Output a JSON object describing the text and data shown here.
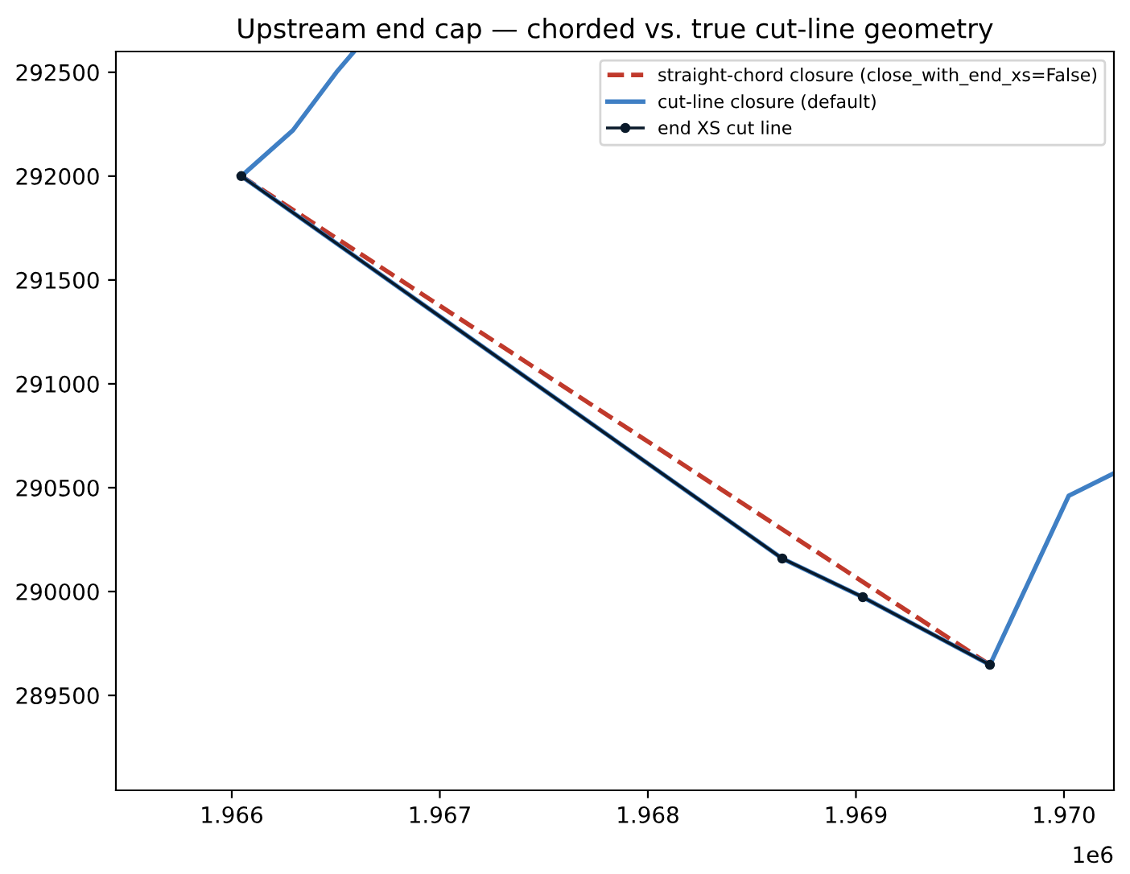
{
  "chart_data": {
    "type": "line",
    "title": "Upstream end cap — chorded vs. true cut-line geometry",
    "series": [
      {
        "name": "straight-chord closure (close_with_end_xs=False)",
        "color": "#c0392b",
        "line_style": "dashed",
        "marker": "none",
        "x": [
          1.966046,
          1.969644
        ],
        "values": [
          292000,
          289647
        ]
      },
      {
        "name": "cut-line closure (default)",
        "color": "#3f7fc4",
        "line_style": "solid",
        "marker": "none",
        "x": [
          1.966588,
          1.966503,
          1.966294,
          1.966046,
          1.968646,
          1.969033,
          1.969644,
          1.970023,
          1.97024
        ],
        "values": [
          292600,
          292500,
          292221,
          292000,
          290159,
          289973,
          289647,
          290461,
          290569
        ]
      },
      {
        "name": "end XS cut line",
        "color": "#0a1a2a",
        "line_style": "solid",
        "marker": "circle",
        "x": [
          1.966046,
          1.968646,
          1.969033,
          1.969644
        ],
        "values": [
          292000,
          290159,
          289973,
          289647
        ]
      }
    ],
    "xlim": [
      1.965443,
      1.97024
    ],
    "ylim": [
      289043,
      292600
    ],
    "xticks": [
      1.966,
      1.967,
      1.968,
      1.969,
      {
        "value": 1.97,
        "label": "1.970"
      }
    ],
    "yticks": [
      289500,
      290000,
      290500,
      291000,
      291500,
      292000,
      292500
    ],
    "annotations": [
      "1e6"
    ],
    "grid": false,
    "legend": "top right"
  }
}
